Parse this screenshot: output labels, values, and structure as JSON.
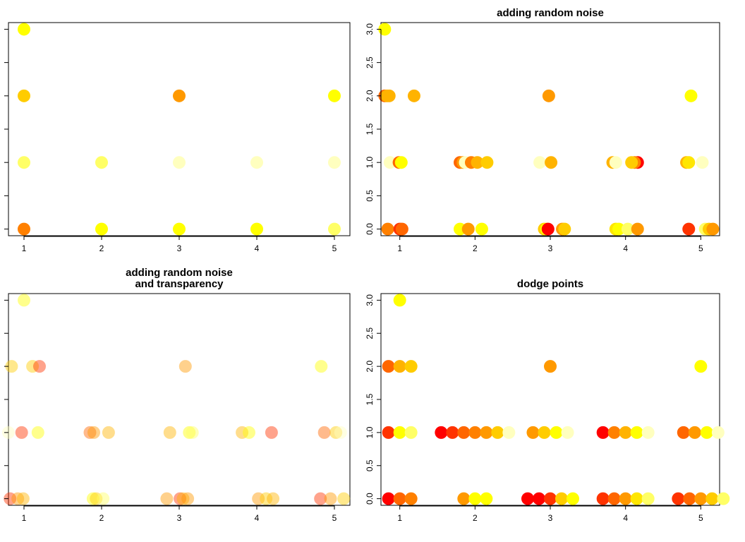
{
  "colors": {
    "palette": [
      "#FF0000",
      "#FF3300",
      "#FF6600",
      "#FF8000",
      "#FF9900",
      "#FFB300",
      "#FFCC00",
      "#FFE600",
      "#FFFF00",
      "#FFFF66",
      "#FFFFBF"
    ],
    "axis": "#000000",
    "background": "#ffffff"
  },
  "chart_data": [
    {
      "type": "scatter",
      "title": "",
      "xlabel": "",
      "ylabel": "",
      "xlim": [
        0.8,
        5.2
      ],
      "ylim": [
        -0.1,
        3.1
      ],
      "xticks": [
        "1",
        "2",
        "3",
        "4",
        "5"
      ],
      "yticks": [],
      "grid": false,
      "points": [
        {
          "x": 1,
          "y": 3,
          "c": 8
        },
        {
          "x": 1,
          "y": 2,
          "c": 6
        },
        {
          "x": 3,
          "y": 2,
          "c": 4
        },
        {
          "x": 5,
          "y": 2,
          "c": 8
        },
        {
          "x": 1,
          "y": 1,
          "c": 9
        },
        {
          "x": 2,
          "y": 1,
          "c": 9
        },
        {
          "x": 3,
          "y": 1,
          "c": 10
        },
        {
          "x": 4,
          "y": 1,
          "c": 10
        },
        {
          "x": 5,
          "y": 1,
          "c": 10
        },
        {
          "x": 1,
          "y": 0,
          "c": 3
        },
        {
          "x": 2,
          "y": 0,
          "c": 8
        },
        {
          "x": 3,
          "y": 0,
          "c": 8
        },
        {
          "x": 4,
          "y": 0,
          "c": 8
        },
        {
          "x": 5,
          "y": 0,
          "c": 9
        }
      ]
    },
    {
      "type": "scatter",
      "title": "adding random noise",
      "xlabel": "",
      "ylabel": "",
      "xlim": [
        0.75,
        5.25
      ],
      "ylim": [
        -0.1,
        3.1
      ],
      "xticks": [
        "1",
        "2",
        "3",
        "4",
        "5"
      ],
      "yticks": [
        "0.0",
        "0.5",
        "1.0",
        "1.5",
        "2.0",
        "2.5",
        "3.0"
      ],
      "grid": false,
      "points": [
        {
          "x": 0.8,
          "y": 3,
          "c": 8
        },
        {
          "x": 0.8,
          "y": 2,
          "c": 2
        },
        {
          "x": 0.83,
          "y": 2,
          "c": 5
        },
        {
          "x": 0.86,
          "y": 2,
          "c": 5
        },
        {
          "x": 1.19,
          "y": 2,
          "c": 5
        },
        {
          "x": 2.98,
          "y": 2,
          "c": 4
        },
        {
          "x": 4.87,
          "y": 2,
          "c": 8
        },
        {
          "x": 0.87,
          "y": 1,
          "c": 10
        },
        {
          "x": 0.99,
          "y": 1,
          "c": 2
        },
        {
          "x": 1.02,
          "y": 1,
          "c": 8
        },
        {
          "x": 1.8,
          "y": 1,
          "c": 2
        },
        {
          "x": 1.84,
          "y": 1,
          "c": 4
        },
        {
          "x": 1.87,
          "y": 1,
          "c": 10
        },
        {
          "x": 1.95,
          "y": 1,
          "c": 3
        },
        {
          "x": 2.03,
          "y": 1,
          "c": 5
        },
        {
          "x": 2.16,
          "y": 1,
          "c": 6
        },
        {
          "x": 2.86,
          "y": 1,
          "c": 10
        },
        {
          "x": 3.01,
          "y": 1,
          "c": 5
        },
        {
          "x": 3.83,
          "y": 1,
          "c": 5
        },
        {
          "x": 3.87,
          "y": 1,
          "c": 10
        },
        {
          "x": 4.16,
          "y": 1,
          "c": 0
        },
        {
          "x": 4.12,
          "y": 1,
          "c": 3
        },
        {
          "x": 4.08,
          "y": 1,
          "c": 6
        },
        {
          "x": 4.81,
          "y": 1,
          "c": 5
        },
        {
          "x": 4.84,
          "y": 1,
          "c": 7
        },
        {
          "x": 5.02,
          "y": 1,
          "c": 10
        },
        {
          "x": 0.84,
          "y": 0,
          "c": 3
        },
        {
          "x": 1,
          "y": 0,
          "c": 1
        },
        {
          "x": 1.03,
          "y": 0,
          "c": 2
        },
        {
          "x": 1.8,
          "y": 0,
          "c": 8
        },
        {
          "x": 1.91,
          "y": 0,
          "c": 4
        },
        {
          "x": 2.09,
          "y": 0,
          "c": 8
        },
        {
          "x": 2.92,
          "y": 0,
          "c": 6
        },
        {
          "x": 2.95,
          "y": 0,
          "c": 8
        },
        {
          "x": 2.97,
          "y": 0,
          "c": 0
        },
        {
          "x": 3.16,
          "y": 0,
          "c": 4
        },
        {
          "x": 3.19,
          "y": 0,
          "c": 6
        },
        {
          "x": 3.87,
          "y": 0,
          "c": 7
        },
        {
          "x": 3.91,
          "y": 0,
          "c": 8
        },
        {
          "x": 4.03,
          "y": 0,
          "c": 9
        },
        {
          "x": 4.16,
          "y": 0,
          "c": 4
        },
        {
          "x": 4.84,
          "y": 0,
          "c": 1
        },
        {
          "x": 5.06,
          "y": 0,
          "c": 9
        },
        {
          "x": 5.11,
          "y": 0,
          "c": 6
        },
        {
          "x": 5.16,
          "y": 0,
          "c": 4
        }
      ]
    },
    {
      "type": "scatter",
      "title": "adding random noise\nand transparency",
      "xlabel": "",
      "ylabel": "",
      "xlim": [
        0.8,
        5.2
      ],
      "ylim": [
        -0.1,
        3.1
      ],
      "xticks": [
        "1",
        "2",
        "3",
        "4",
        "5"
      ],
      "yticks": [],
      "grid": false,
      "alpha": 0.45,
      "points": [
        {
          "x": 1,
          "y": 3,
          "c": 8
        },
        {
          "x": 0.84,
          "y": 2,
          "c": 6
        },
        {
          "x": 1.11,
          "y": 2,
          "c": 6
        },
        {
          "x": 1.2,
          "y": 2,
          "c": 1
        },
        {
          "x": 3.08,
          "y": 2,
          "c": 4
        },
        {
          "x": 4.83,
          "y": 2,
          "c": 8
        },
        {
          "x": 0.8,
          "y": 1,
          "c": 10
        },
        {
          "x": 0.97,
          "y": 1,
          "c": 1
        },
        {
          "x": 1.18,
          "y": 1,
          "c": 8
        },
        {
          "x": 1.85,
          "y": 1,
          "c": 2
        },
        {
          "x": 1.9,
          "y": 1,
          "c": 4
        },
        {
          "x": 2.09,
          "y": 1,
          "c": 5
        },
        {
          "x": 2.88,
          "y": 1,
          "c": 5
        },
        {
          "x": 3.13,
          "y": 1,
          "c": 8
        },
        {
          "x": 3.17,
          "y": 1,
          "c": 9
        },
        {
          "x": 3.81,
          "y": 1,
          "c": 5
        },
        {
          "x": 3.9,
          "y": 1,
          "c": 8
        },
        {
          "x": 4.19,
          "y": 1,
          "c": 1
        },
        {
          "x": 4.87,
          "y": 1,
          "c": 2
        },
        {
          "x": 5.02,
          "y": 1,
          "c": 6
        },
        {
          "x": 5.08,
          "y": 1,
          "c": 10
        },
        {
          "x": 0.82,
          "y": 0,
          "c": 1
        },
        {
          "x": 0.92,
          "y": 0,
          "c": 4
        },
        {
          "x": 0.99,
          "y": 0,
          "c": 5
        },
        {
          "x": 1.89,
          "y": 0,
          "c": 8
        },
        {
          "x": 1.93,
          "y": 0,
          "c": 6
        },
        {
          "x": 2.02,
          "y": 0,
          "c": 9
        },
        {
          "x": 2.84,
          "y": 0,
          "c": 4
        },
        {
          "x": 3.01,
          "y": 0,
          "c": 1
        },
        {
          "x": 3.05,
          "y": 0,
          "c": 5
        },
        {
          "x": 3.11,
          "y": 0,
          "c": 4
        },
        {
          "x": 4.02,
          "y": 0,
          "c": 4
        },
        {
          "x": 4.12,
          "y": 0,
          "c": 6
        },
        {
          "x": 4.21,
          "y": 0,
          "c": 5
        },
        {
          "x": 4.82,
          "y": 0,
          "c": 1
        },
        {
          "x": 4.95,
          "y": 0,
          "c": 4
        },
        {
          "x": 5.12,
          "y": 0,
          "c": 6
        }
      ]
    },
    {
      "type": "scatter",
      "title": "dodge points",
      "xlabel": "",
      "ylabel": "",
      "xlim": [
        0.75,
        5.25
      ],
      "ylim": [
        -0.1,
        3.1
      ],
      "xticks": [
        "1",
        "2",
        "3",
        "4",
        "5"
      ],
      "yticks": [
        "0.0",
        "0.5",
        "1.0",
        "1.5",
        "2.0",
        "2.5",
        "3.0"
      ],
      "grid": false,
      "points": [
        {
          "x": 1,
          "y": 3,
          "c": 8
        },
        {
          "x": 0.85,
          "y": 2,
          "c": 2
        },
        {
          "x": 1,
          "y": 2,
          "c": 5
        },
        {
          "x": 1.15,
          "y": 2,
          "c": 6
        },
        {
          "x": 3,
          "y": 2,
          "c": 4
        },
        {
          "x": 5,
          "y": 2,
          "c": 8
        },
        {
          "x": 0.85,
          "y": 1,
          "c": 1
        },
        {
          "x": 1,
          "y": 1,
          "c": 8
        },
        {
          "x": 1.15,
          "y": 1,
          "c": 9
        },
        {
          "x": 1.55,
          "y": 1,
          "c": 0
        },
        {
          "x": 1.7,
          "y": 1,
          "c": 1
        },
        {
          "x": 1.85,
          "y": 1,
          "c": 2
        },
        {
          "x": 2,
          "y": 1,
          "c": 3
        },
        {
          "x": 2.15,
          "y": 1,
          "c": 4
        },
        {
          "x": 2.3,
          "y": 1,
          "c": 6
        },
        {
          "x": 2.45,
          "y": 1,
          "c": 10
        },
        {
          "x": 2.77,
          "y": 1,
          "c": 4
        },
        {
          "x": 2.92,
          "y": 1,
          "c": 6
        },
        {
          "x": 3.08,
          "y": 1,
          "c": 8
        },
        {
          "x": 3.23,
          "y": 1,
          "c": 10
        },
        {
          "x": 3.7,
          "y": 1,
          "c": 0
        },
        {
          "x": 3.85,
          "y": 1,
          "c": 3
        },
        {
          "x": 4,
          "y": 1,
          "c": 5
        },
        {
          "x": 4.15,
          "y": 1,
          "c": 8
        },
        {
          "x": 4.3,
          "y": 1,
          "c": 10
        },
        {
          "x": 4.77,
          "y": 1,
          "c": 2
        },
        {
          "x": 4.92,
          "y": 1,
          "c": 4
        },
        {
          "x": 5.08,
          "y": 1,
          "c": 8
        },
        {
          "x": 5.23,
          "y": 1,
          "c": 10
        },
        {
          "x": 0.85,
          "y": 0,
          "c": 0
        },
        {
          "x": 1,
          "y": 0,
          "c": 2
        },
        {
          "x": 1.15,
          "y": 0,
          "c": 3
        },
        {
          "x": 1.85,
          "y": 0,
          "c": 4
        },
        {
          "x": 2,
          "y": 0,
          "c": 8
        },
        {
          "x": 2.15,
          "y": 0,
          "c": 8
        },
        {
          "x": 2.7,
          "y": 0,
          "c": 0
        },
        {
          "x": 2.85,
          "y": 0,
          "c": 0
        },
        {
          "x": 3,
          "y": 0,
          "c": 1
        },
        {
          "x": 3.15,
          "y": 0,
          "c": 6
        },
        {
          "x": 3.3,
          "y": 0,
          "c": 8
        },
        {
          "x": 3.7,
          "y": 0,
          "c": 1
        },
        {
          "x": 3.85,
          "y": 0,
          "c": 2
        },
        {
          "x": 4,
          "y": 0,
          "c": 4
        },
        {
          "x": 4.15,
          "y": 0,
          "c": 7
        },
        {
          "x": 4.3,
          "y": 0,
          "c": 9
        },
        {
          "x": 4.7,
          "y": 0,
          "c": 1
        },
        {
          "x": 4.85,
          "y": 0,
          "c": 2
        },
        {
          "x": 5,
          "y": 0,
          "c": 4
        },
        {
          "x": 5.15,
          "y": 0,
          "c": 6
        },
        {
          "x": 5.3,
          "y": 0,
          "c": 9
        }
      ]
    }
  ]
}
